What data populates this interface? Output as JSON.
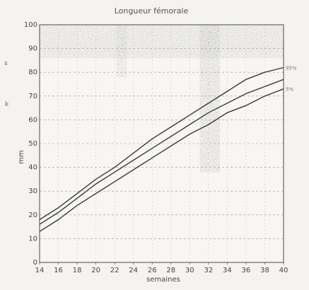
{
  "chart_data": {
    "type": "line",
    "title": "Longueur fémorale",
    "xlabel": "semaines",
    "ylabel": "mm",
    "xlim": [
      14,
      40
    ],
    "ylim": [
      0,
      100
    ],
    "x_ticks": [
      14,
      16,
      18,
      20,
      22,
      24,
      26,
      28,
      30,
      32,
      34,
      36,
      38,
      40
    ],
    "y_ticks": [
      0,
      10,
      20,
      30,
      40,
      50,
      60,
      70,
      80,
      90,
      100
    ],
    "grid": true,
    "legend": "none",
    "series": [
      {
        "name": "95%",
        "x": [
          14,
          16,
          18,
          20,
          22,
          24,
          26,
          28,
          30,
          32,
          34,
          36,
          38,
          40
        ],
        "y": [
          18,
          23,
          29,
          35,
          40,
          46,
          52,
          57,
          62,
          67,
          72,
          77,
          80,
          82
        ]
      },
      {
        "name": "",
        "x": [
          14,
          16,
          18,
          20,
          22,
          24,
          26,
          28,
          30,
          32,
          34,
          36,
          38,
          40
        ],
        "y": [
          16,
          21,
          27,
          33,
          38,
          43,
          48,
          53,
          58,
          63,
          67,
          71,
          74,
          77
        ]
      },
      {
        "name": "5%",
        "x": [
          14,
          16,
          18,
          20,
          22,
          24,
          26,
          28,
          30,
          32,
          34,
          36,
          38,
          40
        ],
        "y": [
          13,
          18,
          24,
          29,
          34,
          39,
          44,
          49,
          54,
          58,
          63,
          66,
          70,
          73
        ]
      }
    ],
    "colors": {
      "curve": "#3a3a3a",
      "grid": "#9a9a9a",
      "background": "#f4f3ef"
    }
  },
  "margin_marks": [
    "s",
    "k"
  ]
}
